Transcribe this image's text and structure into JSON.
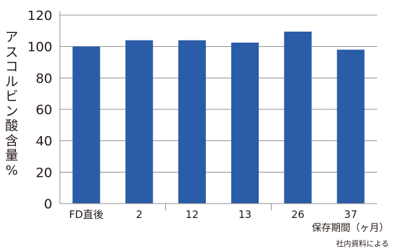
{
  "chart_data": {
    "type": "bar",
    "categories": [
      "FD直後",
      "2",
      "12",
      "13",
      "26",
      "37"
    ],
    "values": [
      100,
      104,
      104,
      102.5,
      109.5,
      98
    ],
    "ylabel": "アスコルビン酸含量%",
    "xlabel": "保存期間（ヶ月）",
    "ylim": [
      0,
      120
    ],
    "yticks": [
      0,
      20,
      40,
      60,
      80,
      100,
      120
    ],
    "grid": true,
    "bar_color": "#2a5ca8",
    "source_note": "社内資料による"
  }
}
